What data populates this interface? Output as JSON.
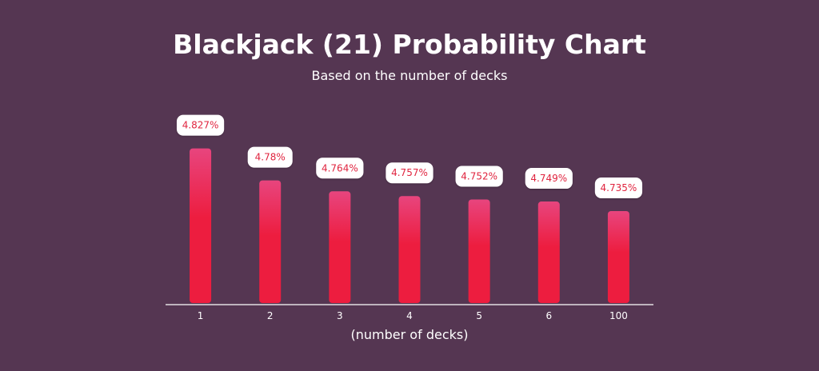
{
  "chart_data": {
    "type": "bar",
    "title": "Blackjack (21) Probability Chart",
    "subtitle": "Based on the number of decks",
    "xlabel": "(number of decks)",
    "ylabel": "",
    "categories": [
      "1",
      "2",
      "3",
      "4",
      "5",
      "6",
      "100"
    ],
    "values": [
      4.827,
      4.78,
      4.764,
      4.757,
      4.752,
      4.749,
      4.735
    ],
    "value_labels": [
      "4.827%",
      "4.78%",
      "4.764%",
      "4.757%",
      "4.752%",
      "4.749%",
      "4.735%"
    ],
    "ylim": [
      4.6,
      4.85
    ],
    "grid": false,
    "legend": "none"
  },
  "colors": {
    "background": "#553652",
    "bar_top": "#e8457e",
    "bar_bottom": "#ed1d3f",
    "label_text": "#e0243f",
    "label_bg": "#ffffff",
    "axis_line": "#ffffff",
    "text": "#ffffff"
  }
}
